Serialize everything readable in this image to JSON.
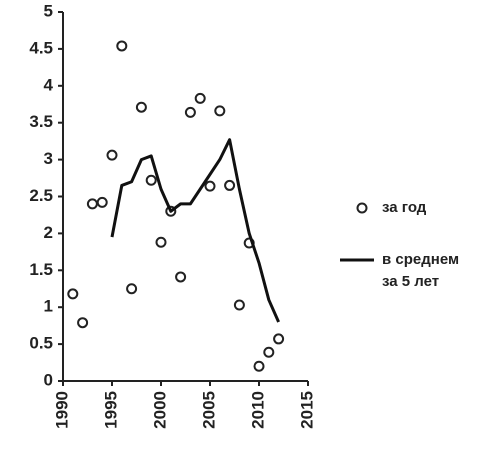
{
  "chart_data": {
    "type": "scatter-line",
    "series": [
      {
        "name": "за год",
        "kind": "scatter",
        "color": "#222222",
        "x": [
          1991,
          1992,
          1993,
          1994,
          1995,
          1996,
          1997,
          1998,
          1999,
          2000,
          2001,
          2002,
          2003,
          2004,
          2005,
          2006,
          2007,
          2008,
          2009,
          2010,
          2011,
          2012
        ],
        "values": [
          1.18,
          0.79,
          2.4,
          2.42,
          3.06,
          4.54,
          1.25,
          3.71,
          2.72,
          1.88,
          2.3,
          1.41,
          3.64,
          3.83,
          2.64,
          3.66,
          2.65,
          1.03,
          1.87,
          0.2,
          0.39,
          0.57
        ]
      },
      {
        "name": "в среднем за 5 лет",
        "kind": "line",
        "color": "#111111",
        "x": [
          1995,
          1996,
          1997,
          1998,
          1999,
          2000,
          2001,
          2002,
          2003,
          2004,
          2005,
          2006,
          2007,
          2008,
          2009,
          2010,
          2011,
          2012
        ],
        "values": [
          1.95,
          2.65,
          2.7,
          3.0,
          3.05,
          2.6,
          2.3,
          2.4,
          2.4,
          2.6,
          2.8,
          3.0,
          3.27,
          2.6,
          2.0,
          1.6,
          1.1,
          0.8
        ]
      }
    ],
    "xlim": [
      1990,
      2015
    ],
    "xticks": [
      1990,
      1995,
      2000,
      2005,
      2010,
      2015
    ],
    "ylim": [
      0,
      5
    ],
    "yticks": [
      0,
      0.5,
      1,
      1.5,
      2,
      2.5,
      3,
      3.5,
      4,
      4.5,
      5
    ],
    "legend": "right"
  }
}
